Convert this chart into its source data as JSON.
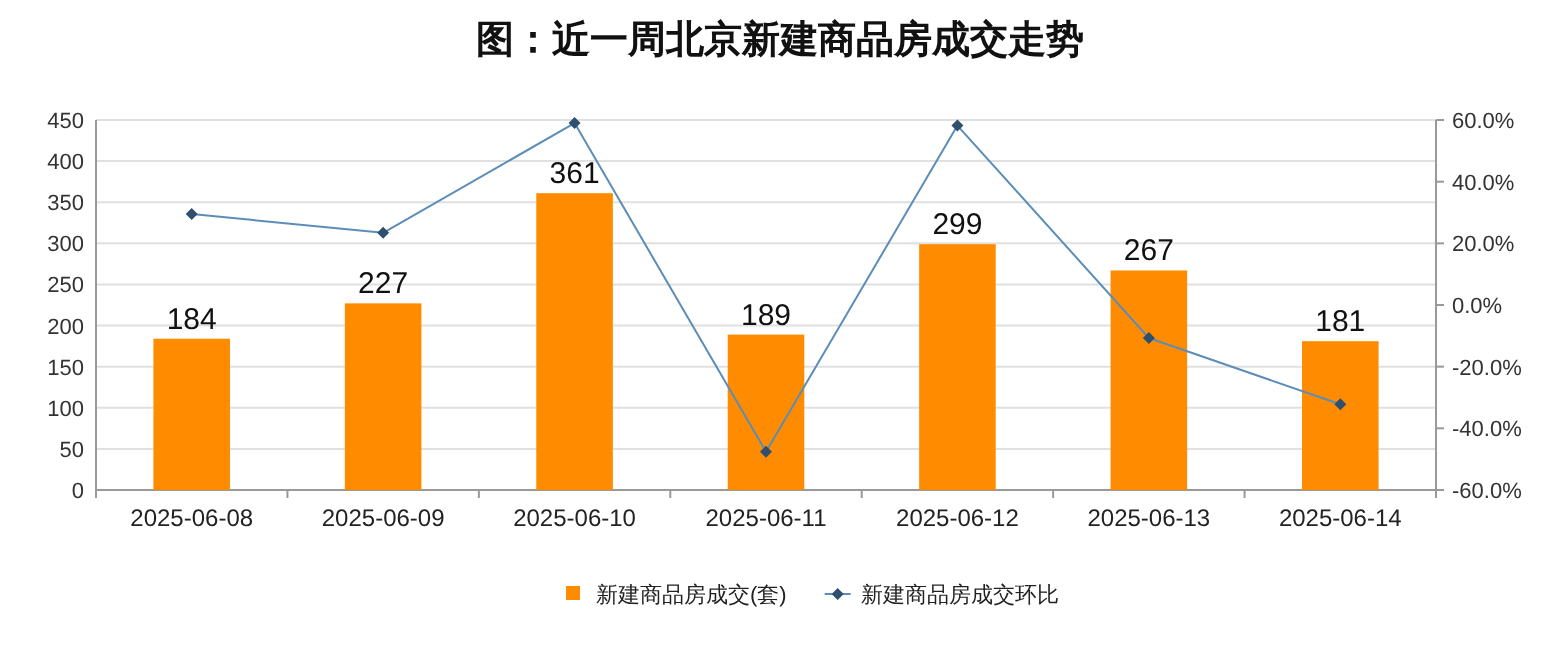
{
  "chart_data": {
    "type": "bar",
    "title": "图：近一周北京新建商品房成交走势",
    "categories": [
      "2025-06-08",
      "2025-06-09",
      "2025-06-10",
      "2025-06-11",
      "2025-06-12",
      "2025-06-13",
      "2025-06-14"
    ],
    "series": [
      {
        "name": "新建商品房成交(套)",
        "color": "#ff8c00",
        "values": [
          184,
          227,
          361,
          189,
          299,
          267,
          181
        ],
        "value_labels": [
          "184",
          "227",
          "361",
          "189",
          "299",
          "267",
          "181"
        ]
      },
      {
        "name": "新建商品房成交环比",
        "type": "line",
        "axis": "y2",
        "color": "#5b8db8",
        "marker": "diamond",
        "values": [
          29.5,
          23.4,
          59.0,
          -47.6,
          58.2,
          -10.7,
          -32.2
        ]
      }
    ],
    "ylim": [
      0,
      450
    ],
    "yticks": [
      0,
      50,
      100,
      150,
      200,
      250,
      300,
      350,
      400,
      450
    ],
    "y2lim": [
      -60,
      60
    ],
    "y2ticks": [
      {
        "value": -60,
        "label": "-60.0%"
      },
      {
        "value": -40,
        "label": "-40.0%"
      },
      {
        "value": -20,
        "label": "-20.0%"
      },
      {
        "value": 0,
        "label": "0.0%"
      },
      {
        "value": 20,
        "label": "20.0%"
      },
      {
        "value": 40,
        "label": "40.0%"
      },
      {
        "value": 60,
        "label": "60.0%"
      }
    ],
    "grid": "y",
    "legend": "bottom"
  }
}
